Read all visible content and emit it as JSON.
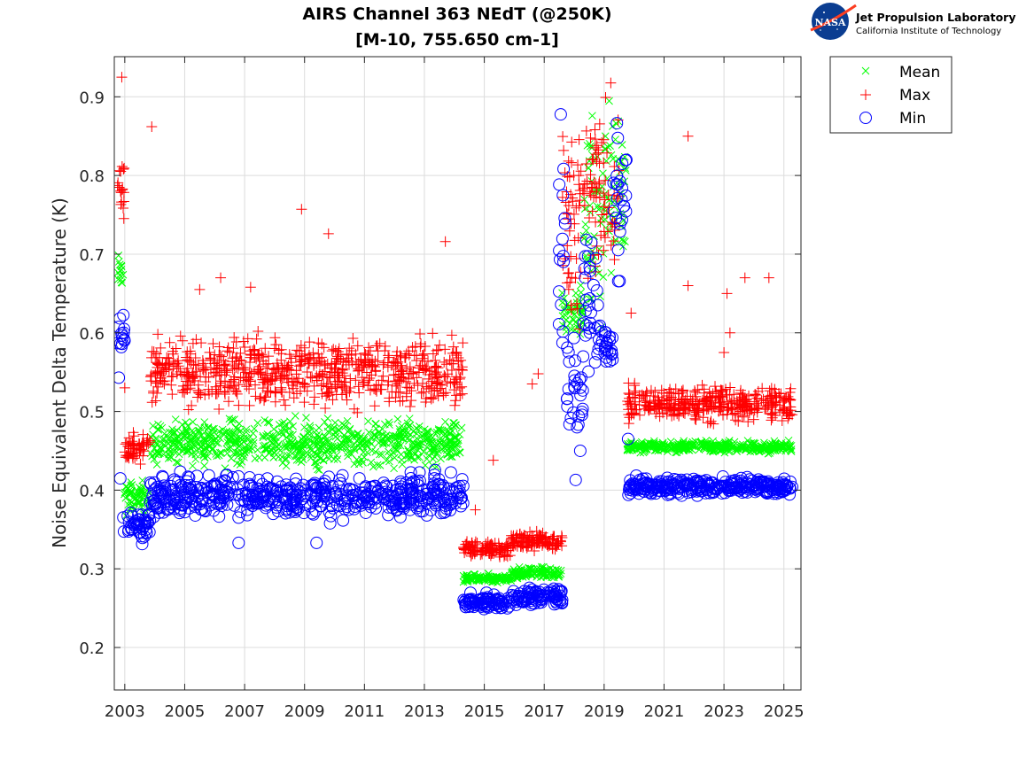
{
  "branding": {
    "org_name": "Jet Propulsion Laboratory",
    "org_subtitle": "California Institute of Technology",
    "logo_text": "NASA",
    "logo_color": "#0b3d91",
    "logo_swoosh_color": "#fc3d21"
  },
  "chart_data": {
    "type": "scatter",
    "title": "AIRS Channel 363 NEdT (@250K)",
    "subtitle": "[M-10, 755.650 cm-1]",
    "xlabel": "",
    "ylabel": "Noise Equivalent Delta Temperature (K)",
    "xlim": [
      2002.65,
      2025.57
    ],
    "ylim": [
      0.146,
      0.951
    ],
    "xticks": [
      2003,
      2005,
      2007,
      2009,
      2011,
      2013,
      2015,
      2017,
      2019,
      2021,
      2023,
      2025
    ],
    "xtick_labels": [
      "2003",
      "2005",
      "2007",
      "2009",
      "2011",
      "2013",
      "2015",
      "2017",
      "2019",
      "2021",
      "2023",
      "2025"
    ],
    "yticks": [
      0.2,
      0.3,
      0.4,
      0.5,
      0.6,
      0.7,
      0.8,
      0.9
    ],
    "ytick_labels": [
      "0.2",
      "0.3",
      "0.4",
      "0.5",
      "0.6",
      "0.7",
      "0.8",
      "0.9"
    ],
    "grid": true,
    "legend_position": "outside-top-right",
    "series": [
      {
        "name": "Mean",
        "marker": "x",
        "color": "#00ff00",
        "segments": [
          {
            "x_range": [
              2002.75,
              2002.95
            ],
            "y_range": [
              0.64,
              0.71
            ]
          },
          {
            "x_range": [
              2002.95,
              2003.85
            ],
            "y_range": [
              0.36,
              0.42
            ]
          },
          {
            "x_range": [
              2003.85,
              2014.3
            ],
            "y_range": [
              0.42,
              0.5
            ]
          },
          {
            "x_range": [
              2014.3,
              2015.9
            ],
            "y_range": [
              0.28,
              0.295
            ]
          },
          {
            "x_range": [
              2015.9,
              2017.6
            ],
            "y_range": [
              0.285,
              0.305
            ]
          },
          {
            "x_range": [
              2017.6,
              2018.3
            ],
            "y_range": [
              0.58,
              0.68
            ]
          },
          {
            "x_range": [
              2018.3,
              2019.0
            ],
            "y_range": [
              0.55,
              0.95
            ]
          },
          {
            "x_range": [
              2019.0,
              2019.75
            ],
            "y_range": [
              0.62,
              0.94
            ]
          },
          {
            "x_range": [
              2019.75,
              2025.3
            ],
            "y_range": [
              0.445,
              0.465
            ]
          }
        ]
      },
      {
        "name": "Max",
        "marker": "+",
        "color": "#ff0000",
        "segments": [
          {
            "x_range": [
              2002.75,
              2003.0
            ],
            "y_range": [
              0.72,
              0.84
            ]
          },
          {
            "x_range": [
              2003.0,
              2003.85
            ],
            "y_range": [
              0.43,
              0.48
            ]
          },
          {
            "x_range": [
              2003.85,
              2014.3
            ],
            "y_range": [
              0.49,
              0.61
            ]
          },
          {
            "x_range": [
              2014.3,
              2015.9
            ],
            "y_range": [
              0.31,
              0.34
            ]
          },
          {
            "x_range": [
              2015.9,
              2017.6
            ],
            "y_range": [
              0.32,
              0.35
            ]
          },
          {
            "x_range": [
              2017.6,
              2018.5
            ],
            "y_range": [
              0.55,
              0.94
            ]
          },
          {
            "x_range": [
              2018.5,
              2019.5
            ],
            "y_range": [
              0.6,
              0.94
            ]
          },
          {
            "x_range": [
              2019.75,
              2025.3
            ],
            "y_range": [
              0.48,
              0.54
            ]
          }
        ],
        "outliers": [
          [
            2002.9,
            0.925
          ],
          [
            2003.9,
            0.862
          ],
          [
            2003.0,
            0.53
          ],
          [
            2008.9,
            0.757
          ],
          [
            2009.8,
            0.726
          ],
          [
            2006.2,
            0.67
          ],
          [
            2007.2,
            0.658
          ],
          [
            2005.5,
            0.655
          ],
          [
            2013.7,
            0.716
          ],
          [
            2015.3,
            0.438
          ],
          [
            2016.6,
            0.535
          ],
          [
            2016.8,
            0.548
          ],
          [
            2014.7,
            0.375
          ],
          [
            2021.8,
            0.85
          ],
          [
            2021.8,
            0.66
          ],
          [
            2023.1,
            0.65
          ],
          [
            2023.7,
            0.67
          ],
          [
            2024.5,
            0.67
          ],
          [
            2023.2,
            0.6
          ],
          [
            2023.0,
            0.575
          ],
          [
            2019.9,
            0.625
          ]
        ]
      },
      {
        "name": "Min",
        "marker": "o",
        "color": "#0000ff",
        "segments": [
          {
            "x_range": [
              2002.75,
              2003.0
            ],
            "y_range": [
              0.57,
              0.63
            ]
          },
          {
            "x_range": [
              2002.95,
              2003.85
            ],
            "y_range": [
              0.33,
              0.38
            ]
          },
          {
            "x_range": [
              2003.85,
              2014.3
            ],
            "y_range": [
              0.355,
              0.43
            ]
          },
          {
            "x_range": [
              2014.3,
              2015.9
            ],
            "y_range": [
              0.245,
              0.27
            ]
          },
          {
            "x_range": [
              2015.9,
              2017.6
            ],
            "y_range": [
              0.25,
              0.28
            ]
          },
          {
            "x_range": [
              2017.45,
              2017.75
            ],
            "y_range": [
              0.5,
              0.945
            ]
          },
          {
            "x_range": [
              2017.75,
              2018.3
            ],
            "y_range": [
              0.41,
              0.65
            ]
          },
          {
            "x_range": [
              2018.3,
              2018.8
            ],
            "y_range": [
              0.48,
              0.83
            ]
          },
          {
            "x_range": [
              2018.8,
              2019.3
            ],
            "y_range": [
              0.55,
              0.62
            ]
          },
          {
            "x_range": [
              2019.3,
              2019.75
            ],
            "y_range": [
              0.63,
              0.93
            ]
          },
          {
            "x_range": [
              2019.75,
              2025.3
            ],
            "y_range": [
              0.39,
              0.42
            ]
          }
        ],
        "outliers": [
          [
            2002.85,
            0.415
          ],
          [
            2002.8,
            0.543
          ],
          [
            2009.4,
            0.333
          ],
          [
            2006.8,
            0.333
          ],
          [
            2018.05,
            0.413
          ],
          [
            2019.8,
            0.465
          ]
        ]
      }
    ]
  }
}
